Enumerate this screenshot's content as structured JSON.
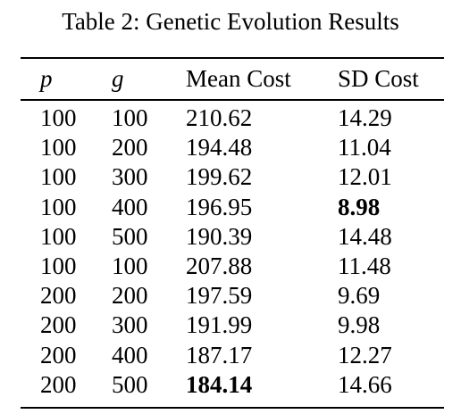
{
  "caption": "Table 2: Genetic Evolution Results",
  "headers": {
    "p": "p",
    "g": "g",
    "mean": "Mean Cost",
    "sd": "SD Cost"
  },
  "rows": [
    {
      "p": "100",
      "g": "100",
      "mean": "210.62",
      "sd": "14.29",
      "bold_mean": false,
      "bold_sd": false
    },
    {
      "p": "100",
      "g": "200",
      "mean": "194.48",
      "sd": "11.04",
      "bold_mean": false,
      "bold_sd": false
    },
    {
      "p": "100",
      "g": "300",
      "mean": "199.62",
      "sd": "12.01",
      "bold_mean": false,
      "bold_sd": false
    },
    {
      "p": "100",
      "g": "400",
      "mean": "196.95",
      "sd": "8.98",
      "bold_mean": false,
      "bold_sd": true
    },
    {
      "p": "100",
      "g": "500",
      "mean": "190.39",
      "sd": "14.48",
      "bold_mean": false,
      "bold_sd": false
    },
    {
      "p": "100",
      "g": "100",
      "mean": "207.88",
      "sd": "11.48",
      "bold_mean": false,
      "bold_sd": false
    },
    {
      "p": "200",
      "g": "200",
      "mean": "197.59",
      "sd": "9.69",
      "bold_mean": false,
      "bold_sd": false
    },
    {
      "p": "200",
      "g": "300",
      "mean": "191.99",
      "sd": "9.98",
      "bold_mean": false,
      "bold_sd": false
    },
    {
      "p": "200",
      "g": "400",
      "mean": "187.17",
      "sd": "12.27",
      "bold_mean": false,
      "bold_sd": false
    },
    {
      "p": "200",
      "g": "500",
      "mean": "184.14",
      "sd": "14.66",
      "bold_mean": true,
      "bold_sd": false
    }
  ]
}
